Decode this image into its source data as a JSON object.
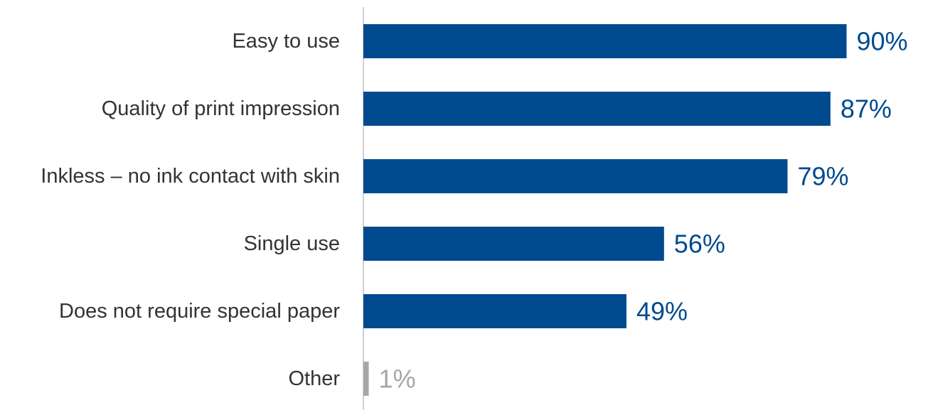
{
  "chart_data": {
    "type": "bar",
    "orientation": "horizontal",
    "categories": [
      "Easy to use",
      "Quality of print impression",
      "Inkless – no ink contact with skin",
      "Single use",
      "Does not require special paper",
      "Other"
    ],
    "values": [
      90,
      87,
      79,
      56,
      49,
      1
    ],
    "value_labels": [
      "90%",
      "87%",
      "79%",
      "56%",
      "49%",
      "1%"
    ],
    "colors": [
      "#004a8f",
      "#004a8f",
      "#004a8f",
      "#004a8f",
      "#004a8f",
      "#a6a6a6"
    ],
    "label_colors": [
      "#004a8f",
      "#004a8f",
      "#004a8f",
      "#004a8f",
      "#004a8f",
      "#a6a6a6"
    ],
    "axis_line_color": "#bfbfbf",
    "xlim": [
      0,
      100
    ],
    "grid": false,
    "legend": "none"
  }
}
